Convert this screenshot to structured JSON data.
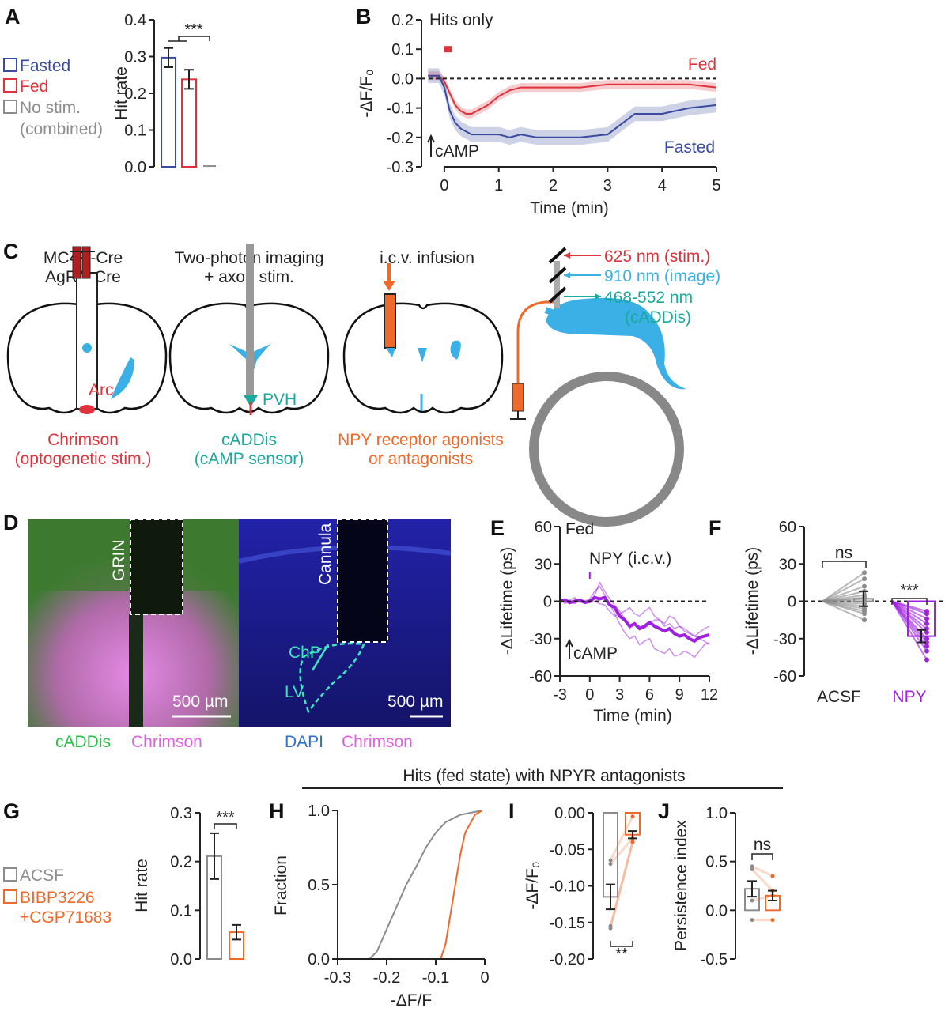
{
  "panel_labels": [
    "A",
    "B",
    "C",
    "D",
    "E",
    "F",
    "G",
    "H",
    "I",
    "J"
  ],
  "colors": {
    "fasted": "#3a4ba0",
    "fed": "#e0323c",
    "gray": "#8c8c8c",
    "teal": "#1aa99a",
    "sensor_blue": "#3ab0e6",
    "orange": "#ee6a2b",
    "npy": "#a020e0",
    "chrimson": "#e060e0",
    "cadd_green": "#2bbf4a",
    "dapi": "#2f6fd0"
  },
  "panel_c": {
    "brain1_title": [
      "MC4R-Cre",
      "AgRP-Cre"
    ],
    "brain2_title": [
      "Two-photon imaging",
      "+ axon stim."
    ],
    "brain3_title": "i.c.v. infusion",
    "arc": "Arc",
    "pvh": "PVH",
    "caption1": [
      "Chrimson",
      "(optogenetic stim.)"
    ],
    "caption2": [
      "cADDis",
      "(cAMP sensor)"
    ],
    "caption3": [
      "NPY receptor agonists",
      "or antagonists"
    ],
    "laser_stim": "625 nm (stim.)",
    "laser_image": "910 nm (image)",
    "emission": [
      "468-552 nm",
      "(cADDis)"
    ]
  },
  "panel_d": {
    "grin": "GRIN",
    "cannula": "Cannula",
    "chp": "ChP",
    "lv": "LV",
    "scale_left": "500 µm",
    "scale_right": "500 µm",
    "captions_left": [
      "cADDis",
      "Chrimson"
    ],
    "captions_right": [
      "DAPI",
      "Chrimson"
    ]
  },
  "header_fed_state": "Hits (fed state) with NPYR antagonists",
  "chart_data": [
    {
      "panel": "A",
      "type": "bar",
      "categories": [
        "Fasted",
        "Fed",
        "No stim. (combined)"
      ],
      "legend": [
        "Fasted",
        "Fed",
        "No stim.",
        "(combined)"
      ],
      "legend_position": "left",
      "values": [
        0.297,
        0.238,
        0.002
      ],
      "errors": [
        0.026,
        0.026,
        0
      ],
      "colors": [
        "#3a4ba0",
        "#e0323c",
        "#8c8c8c"
      ],
      "ylabel": "Hit rate",
      "xlabel": "",
      "ylim": [
        0,
        0.4
      ],
      "yticks": [
        0,
        0.1,
        0.2,
        0.3,
        0.4
      ],
      "ytick_labels": [
        "0.0",
        "0.1",
        "0.2",
        "0.3",
        "0.4"
      ],
      "significance": "***"
    },
    {
      "panel": "B",
      "type": "line",
      "title": "Hits only",
      "xlabel": "Time (min)",
      "ylabel": "-ΔF/F₀",
      "xlim": [
        -0.42,
        5
      ],
      "ylim": [
        -0.3,
        0.2
      ],
      "xticks": [
        0,
        1,
        2,
        3,
        4,
        5
      ],
      "xtick_labels": [
        "0",
        "1",
        "2",
        "3",
        "4",
        "5"
      ],
      "yticks": [
        -0.3,
        -0.2,
        -0.1,
        0,
        0.1,
        0.2
      ],
      "ytick_labels": [
        "-0.3",
        "-0.2",
        "-0.1",
        "0.0",
        "0.1",
        "0.2"
      ],
      "reference_line": 0,
      "annotation": "cAMP",
      "stim_marker": {
        "x": 0.07,
        "y": 0.1,
        "color": "#e0323c"
      },
      "series": [
        {
          "name": "Fed",
          "color": "#e0323c",
          "sem": 0.015,
          "x": [
            -0.3,
            -0.1,
            0,
            0.1,
            0.2,
            0.3,
            0.4,
            0.5,
            0.6,
            0.8,
            1,
            1.2,
            1.4,
            1.7,
            2,
            2.5,
            3,
            3.5,
            4,
            4.5,
            5
          ],
          "y": [
            0.01,
            0.01,
            -0.01,
            -0.05,
            -0.09,
            -0.11,
            -0.12,
            -0.12,
            -0.11,
            -0.09,
            -0.06,
            -0.04,
            -0.03,
            -0.03,
            -0.03,
            -0.03,
            -0.02,
            -0.02,
            -0.02,
            -0.02,
            -0.03
          ]
        },
        {
          "name": "Fasted",
          "color": "#3a4ba0",
          "sem": 0.025,
          "x": [
            -0.3,
            -0.1,
            0,
            0.1,
            0.2,
            0.3,
            0.4,
            0.5,
            0.6,
            0.8,
            1,
            1.2,
            1.4,
            1.7,
            2,
            2.5,
            3,
            3.5,
            4,
            4.5,
            5
          ],
          "y": [
            0.01,
            0.01,
            -0.03,
            -0.11,
            -0.15,
            -0.17,
            -0.18,
            -0.19,
            -0.19,
            -0.19,
            -0.19,
            -0.2,
            -0.19,
            -0.2,
            -0.2,
            -0.2,
            -0.19,
            -0.12,
            -0.12,
            -0.1,
            -0.09
          ]
        }
      ]
    },
    {
      "panel": "E",
      "type": "line",
      "title": "Fed",
      "xlabel": "Time (min)",
      "ylabel": "-ΔLifetime (ps)",
      "xlim": [
        -3,
        12
      ],
      "ylim": [
        -60,
        60
      ],
      "xticks": [
        -3,
        0,
        3,
        6,
        9,
        12
      ],
      "xtick_labels": [
        "-3",
        "0",
        "3",
        "6",
        "9",
        "12"
      ],
      "yticks": [
        -60,
        -30,
        0,
        30,
        60
      ],
      "ytick_labels": [
        "-60",
        "-30",
        "0",
        "30",
        "60"
      ],
      "reference_line": 0,
      "annotation": "cAMP",
      "event_label": "NPY (i.c.v.)",
      "event_time": 0,
      "color": "#a020e0",
      "x": [
        -3,
        -2.5,
        -2,
        -1.5,
        -1,
        -0.5,
        0,
        0.5,
        1,
        1.5,
        2,
        2.5,
        3,
        3.5,
        4,
        4.5,
        5,
        5.5,
        6,
        6.5,
        7,
        7.5,
        8,
        8.5,
        9,
        9.5,
        10,
        10.5,
        11,
        11.5,
        12
      ],
      "mean": [
        0,
        1,
        -1,
        0,
        1,
        -1,
        0,
        3,
        2,
        3,
        -3,
        -5,
        -12,
        -15,
        -20,
        -18,
        -22,
        -20,
        -17,
        -20,
        -22,
        -24,
        -22,
        -26,
        -28,
        -27,
        -30,
        -32,
        -29,
        -28,
        -27
      ],
      "individual": [
        [
          2,
          -2,
          1,
          3,
          -1,
          0,
          2,
          8,
          12,
          5,
          -2,
          -10,
          -18,
          -25,
          -30,
          -28,
          -35,
          -32,
          -30,
          -38,
          -40,
          -42,
          -38,
          -44,
          -43,
          -40,
          -42,
          -45,
          -40,
          -35,
          -33
        ],
        [
          -1,
          2,
          0,
          -2,
          1,
          0,
          -1,
          0,
          -2,
          -3,
          -8,
          -12,
          -10,
          -8,
          -5,
          -10,
          -12,
          -8,
          -5,
          -12,
          -15,
          -20,
          -18,
          -22,
          -20,
          -24,
          -26,
          -28,
          -25,
          -22,
          -20
        ],
        [
          1,
          0,
          -2,
          1,
          2,
          -1,
          0,
          5,
          15,
          8,
          2,
          -3,
          -8,
          -14,
          -22,
          -18,
          -20,
          -22,
          -18,
          -15,
          -15,
          -18,
          -12,
          -14,
          -20,
          -22,
          -25,
          -28,
          -30,
          -32,
          -35
        ]
      ]
    },
    {
      "panel": "F",
      "type": "bar",
      "categories": [
        "ACSF",
        "NPY"
      ],
      "colors": [
        "#8c8c8c",
        "#a020e0"
      ],
      "ylabel": "-ΔLifetime (ps)",
      "ylim": [
        -60,
        60
      ],
      "yticks": [
        -60,
        -30,
        0,
        30,
        60
      ],
      "ytick_labels": [
        "-60",
        "-30",
        "0",
        "30",
        "60"
      ],
      "values": [
        2,
        -28
      ],
      "errors": [
        6,
        5
      ],
      "points": [
        [
          23,
          18,
          12,
          8,
          5,
          3,
          2,
          0,
          -2,
          -4,
          -6,
          -8,
          -10,
          -15
        ],
        [
          -8,
          -10,
          -14,
          -18,
          -22,
          -25,
          -30,
          -33,
          -36,
          -40,
          -47
        ]
      ],
      "significance": [
        "ns",
        "***"
      ]
    },
    {
      "panel": "G",
      "type": "bar",
      "categories": [
        "ACSF",
        "BIBP3226 +CGP71683"
      ],
      "legend": [
        "ACSF",
        "BIBP3226",
        "+CGP71683"
      ],
      "legend_position": "left",
      "colors": [
        "#8c8c8c",
        "#ee6a2b"
      ],
      "values": [
        0.211,
        0.055
      ],
      "errors": [
        0.047,
        0.015
      ],
      "ylabel": "Hit rate",
      "ylim": [
        0,
        0.3
      ],
      "yticks": [
        0,
        0.1,
        0.2,
        0.3
      ],
      "ytick_labels": [
        "0.0",
        "0.1",
        "0.2",
        "0.3"
      ],
      "significance": "***"
    },
    {
      "panel": "H",
      "type": "line",
      "xlabel": "-ΔF/F",
      "ylabel": "Fraction",
      "xlim": [
        -0.3,
        0
      ],
      "ylim": [
        0,
        1
      ],
      "xticks": [
        -0.3,
        -0.2,
        -0.1,
        0
      ],
      "xtick_labels": [
        "-0.3",
        "-0.2",
        "-0.1",
        "0"
      ],
      "yticks": [
        0,
        0.5,
        1
      ],
      "ytick_labels": [
        "0.0",
        "0.5",
        "1.0"
      ],
      "series": [
        {
          "color": "#8c8c8c",
          "x": [
            -0.235,
            -0.22,
            -0.2,
            -0.18,
            -0.16,
            -0.14,
            -0.12,
            -0.1,
            -0.08,
            -0.05,
            -0.02,
            -0.005
          ],
          "y": [
            0,
            0.05,
            0.2,
            0.35,
            0.5,
            0.62,
            0.75,
            0.85,
            0.92,
            0.97,
            0.99,
            1
          ]
        },
        {
          "color": "#ee6a2b",
          "x": [
            -0.09,
            -0.08,
            -0.07,
            -0.06,
            -0.05,
            -0.04,
            -0.02,
            -0.005
          ],
          "y": [
            0,
            0.1,
            0.3,
            0.5,
            0.7,
            0.85,
            0.97,
            1
          ]
        }
      ]
    },
    {
      "panel": "I",
      "type": "bar",
      "colors": [
        "#8c8c8c",
        "#ee6a2b"
      ],
      "ylabel": "-ΔF/F₀",
      "ylim": [
        -0.2,
        0
      ],
      "yticks": [
        -0.2,
        -0.15,
        -0.1,
        -0.05,
        0
      ],
      "ytick_labels": [
        "-0.20",
        "-0.15",
        "-0.10",
        "-0.05",
        "0.00"
      ],
      "values": [
        -0.115,
        -0.03
      ],
      "errors": [
        0.017,
        0.005
      ],
      "points": [
        [
          -0.065,
          -0.07,
          -0.155,
          -0.158
        ],
        [
          -0.005,
          -0.035,
          -0.04,
          -0.04
        ]
      ],
      "pairs": true,
      "significance": "**"
    },
    {
      "panel": "J",
      "type": "bar",
      "colors": [
        "#8c8c8c",
        "#ee6a2b"
      ],
      "ylabel": "Persistence index",
      "ylim": [
        -0.5,
        1
      ],
      "yticks": [
        -0.5,
        0,
        0.5,
        1
      ],
      "ytick_labels": [
        "-0.5",
        "0.0",
        "0.5",
        "1.0"
      ],
      "values": [
        0.22,
        0.15
      ],
      "errors": [
        0.08,
        0.05
      ],
      "points": [
        [
          0.45,
          0.42,
          0.1,
          -0.1
        ],
        [
          0.35,
          0.2,
          0.15,
          -0.1
        ]
      ],
      "pairs": true,
      "significance": "ns"
    }
  ]
}
